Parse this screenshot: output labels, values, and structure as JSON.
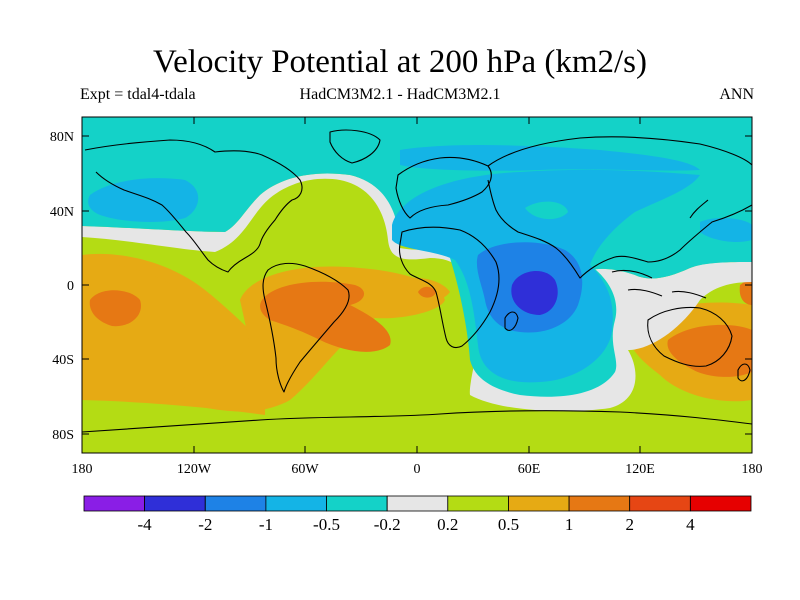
{
  "title": "Velocity Potential at 200 hPa (km2/s)",
  "subtitle_left": "Expt = tdal4-tdala",
  "subtitle_center": "HadCM3M2.1 - HadCM3M2.1",
  "subtitle_right": "ANN",
  "lat_ticks": [
    "80N",
    "40N",
    "0",
    "40S",
    "80S"
  ],
  "lon_ticks": [
    "180",
    "120W",
    "60W",
    "0",
    "60E",
    "120E",
    "180"
  ],
  "colorbar": {
    "labels": [
      "-4",
      "-2",
      "-1",
      "-0.5",
      "-0.2",
      "0.2",
      "0.5",
      "1",
      "2",
      "4"
    ],
    "colors": [
      "#8a1ee6",
      "#2f2fd8",
      "#1e82e6",
      "#14b4e6",
      "#14d2c8",
      "#e6e6e6",
      "#b4dc14",
      "#e6aa14",
      "#e67814",
      "#e64614",
      "#e60000"
    ]
  },
  "palette": {
    "teal": "#14d2c8",
    "cyan": "#14b4e6",
    "blue": "#1e82e6",
    "darkblue": "#2f2fd8",
    "white": "#e6e6e6",
    "green": "#b4dc14",
    "gold": "#e6aa14",
    "orange": "#e67814"
  }
}
